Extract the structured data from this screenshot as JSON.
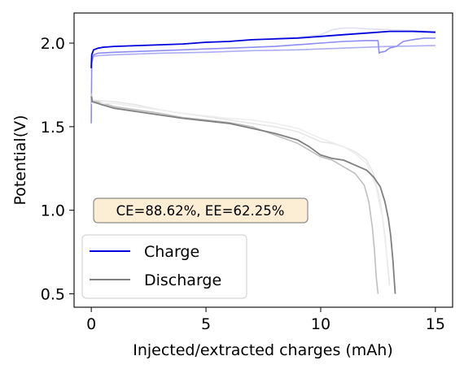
{
  "chart_data": {
    "type": "line",
    "xlabel": "Injected/extracted charges (mAh)",
    "ylabel": "Potential(V)",
    "xlim": [
      -0.75,
      15.75
    ],
    "ylim": [
      0.42,
      2.18
    ],
    "xticks": [
      0,
      5,
      10,
      15
    ],
    "xtick_labels": [
      "0",
      "5",
      "10",
      "15"
    ],
    "yticks": [
      0.5,
      1.0,
      1.5,
      2.0
    ],
    "ytick_labels": [
      "0.5",
      "1.0",
      "1.5",
      "2.0"
    ],
    "grid": false,
    "legend_position": "lower-left",
    "legend": [
      {
        "label": "Charge",
        "color": "#0000dd"
      },
      {
        "label": "Discharge",
        "color": "#7f7f7f"
      }
    ],
    "annotation": "CE=88.62%, EE=62.25%",
    "annotation_box": {
      "fill": "#fbeed5",
      "edge": "#8c8c8c"
    },
    "series": [
      {
        "kind": "charge",
        "color": "#0000dd",
        "alpha": 1.0,
        "width": 1.8,
        "x": [
          0,
          0.02,
          0.1,
          0.3,
          0.5,
          1,
          2,
          3,
          4,
          5,
          6,
          7,
          8,
          9,
          10,
          11,
          12,
          13,
          14,
          15
        ],
        "y": [
          1.85,
          1.93,
          1.96,
          1.97,
          1.975,
          1.98,
          1.985,
          1.99,
          1.995,
          2.005,
          2.01,
          2.02,
          2.025,
          2.03,
          2.04,
          2.05,
          2.06,
          2.07,
          2.07,
          2.065
        ]
      },
      {
        "kind": "charge",
        "color": "#6666ee",
        "alpha": 0.75,
        "width": 1.6,
        "x": [
          0,
          0.02,
          0.1,
          0.3,
          1,
          2,
          3,
          4,
          5,
          6,
          7,
          8,
          9,
          10,
          11,
          12,
          12.5,
          12.55,
          12.6,
          12.8,
          13,
          13.3,
          13.6,
          14,
          14.5,
          15
        ],
        "y": [
          1.52,
          1.88,
          1.93,
          1.94,
          1.945,
          1.95,
          1.955,
          1.96,
          1.965,
          1.97,
          1.975,
          1.98,
          1.99,
          2.0,
          2.01,
          2.015,
          2.015,
          1.94,
          1.945,
          1.95,
          1.97,
          1.98,
          2.01,
          2.02,
          2.03,
          2.03
        ]
      },
      {
        "kind": "charge",
        "color": "#9999f0",
        "alpha": 0.8,
        "width": 1.6,
        "x": [
          0,
          0.05,
          0.3,
          1,
          3,
          5,
          7,
          9,
          11,
          13,
          15
        ],
        "y": [
          1.9,
          1.92,
          1.925,
          1.93,
          1.94,
          1.945,
          1.955,
          1.96,
          1.97,
          1.98,
          1.985
        ]
      },
      {
        "kind": "charge",
        "color": "#ddddf4",
        "alpha": 1.0,
        "width": 1.6,
        "x": [
          8,
          9,
          10,
          10.5,
          11,
          11.5,
          12,
          13,
          14,
          15
        ],
        "y": [
          2.03,
          2.035,
          2.05,
          2.08,
          2.09,
          2.09,
          2.085,
          2.08,
          2.075,
          2.07
        ]
      },
      {
        "kind": "discharge",
        "color": "#7f7f7f",
        "alpha": 1.0,
        "width": 1.8,
        "x": [
          0,
          0.05,
          0.5,
          1,
          2,
          3,
          4,
          5,
          6,
          7,
          8,
          9,
          9.5,
          10,
          10.5,
          11,
          11.5,
          12,
          12.3,
          12.6,
          12.8,
          12.95,
          13.05,
          13.15,
          13.2,
          13.25
        ],
        "y": [
          1.68,
          1.65,
          1.63,
          1.61,
          1.59,
          1.57,
          1.55,
          1.535,
          1.52,
          1.49,
          1.46,
          1.42,
          1.38,
          1.33,
          1.31,
          1.3,
          1.27,
          1.24,
          1.2,
          1.14,
          1.05,
          0.95,
          0.85,
          0.7,
          0.6,
          0.5
        ]
      },
      {
        "kind": "discharge",
        "color": "#bfbfbf",
        "alpha": 1.0,
        "width": 1.6,
        "x": [
          0,
          0.05,
          0.5,
          1,
          2,
          3,
          4,
          5,
          6,
          7,
          8,
          9,
          9.5,
          10,
          10.5,
          11,
          11.5,
          11.9,
          12.1,
          12.25,
          12.35,
          12.42,
          12.5
        ],
        "y": [
          1.7,
          1.66,
          1.64,
          1.62,
          1.6,
          1.58,
          1.555,
          1.54,
          1.525,
          1.5,
          1.45,
          1.4,
          1.36,
          1.32,
          1.3,
          1.26,
          1.22,
          1.15,
          1.05,
          0.9,
          0.75,
          0.6,
          0.5
        ]
      },
      {
        "kind": "discharge",
        "color": "#e6e6e6",
        "alpha": 1.0,
        "width": 1.6,
        "x": [
          0,
          1,
          2,
          3,
          4,
          5,
          6,
          7,
          8,
          9,
          10,
          10.5,
          11,
          11.5,
          12,
          12.3,
          12.6,
          12.8,
          13
        ],
        "y": [
          1.66,
          1.65,
          1.63,
          1.6,
          1.58,
          1.56,
          1.54,
          1.52,
          1.5,
          1.47,
          1.41,
          1.4,
          1.38,
          1.35,
          1.3,
          1.22,
          1.05,
          0.85,
          0.55
        ]
      },
      {
        "kind": "discharge",
        "color": "#eeeeee",
        "alpha": 1.0,
        "width": 1.6,
        "x": [
          0,
          1,
          2,
          3,
          4,
          5,
          6,
          7,
          8,
          9,
          10,
          11,
          11.5,
          12,
          12.4,
          12.7,
          12.9
        ],
        "y": [
          1.64,
          1.64,
          1.62,
          1.6,
          1.58,
          1.565,
          1.55,
          1.54,
          1.52,
          1.49,
          1.43,
          1.38,
          1.34,
          1.28,
          1.15,
          0.95,
          0.7
        ]
      }
    ]
  }
}
